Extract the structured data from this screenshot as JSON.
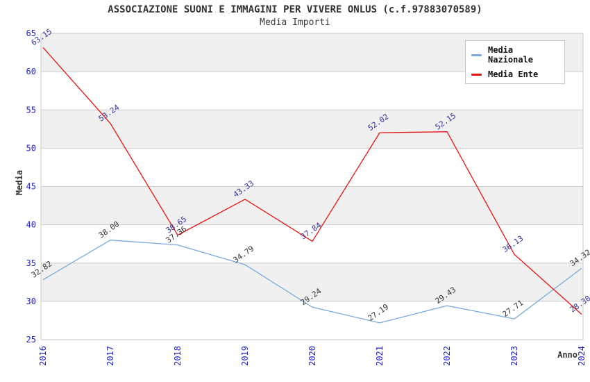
{
  "chart_data": {
    "type": "line",
    "title": "ASSOCIAZIONE SUONI E IMMAGINI PER VIVERE ONLUS (c.f.97883070589)",
    "subtitle": "Media Importi",
    "xlabel": "Anno",
    "ylabel": "Media",
    "ylim": [
      25,
      65
    ],
    "y_tick_step": 5,
    "y_ticks": [
      25,
      30,
      35,
      40,
      45,
      50,
      55,
      60,
      65
    ],
    "grid": true,
    "banded_background": true,
    "legend_position": "top-right",
    "categories": [
      "2016",
      "2017",
      "2018",
      "2019",
      "2020",
      "2021",
      "2022",
      "2023",
      "2024"
    ],
    "series": [
      {
        "name": "Media Nazionale",
        "color": "#7AA8DC",
        "label_color": "#333333",
        "values": [
          32.82,
          38.0,
          37.36,
          34.79,
          29.24,
          27.19,
          29.43,
          27.71,
          34.32
        ]
      },
      {
        "name": "Media Ente",
        "color": "#E81212",
        "label_color": "#32329B",
        "values": [
          63.15,
          53.24,
          38.65,
          43.33,
          37.84,
          52.02,
          52.15,
          36.13,
          28.3
        ]
      }
    ]
  },
  "colors": {
    "tick_label": "#2222CC",
    "band": "#F0F0F0",
    "grid_line": "#CDCDCD",
    "plot_border": "#C8C8C8",
    "axis_title": "#333333"
  }
}
